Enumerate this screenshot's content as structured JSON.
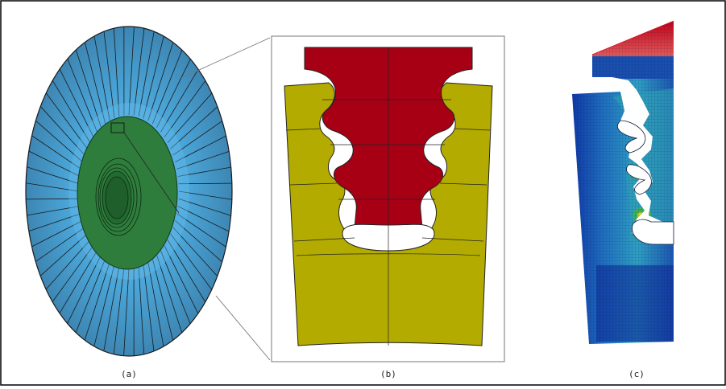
{
  "figure": {
    "captions": {
      "a": "(a)",
      "b": "(b)",
      "c": "(c)"
    },
    "panels": [
      {
        "id": "a",
        "content": "turbine-disk-with-blades",
        "colors": {
          "blades": "#4a97c4",
          "blades_inner": "#5fb7e8",
          "disk": "#2f7d3c",
          "hub": "#1f5f2b",
          "outline": "#1a1a1a"
        }
      },
      {
        "id": "b",
        "content": "fir-tree-root-attachment",
        "colors": {
          "blade_root": "#a70015",
          "disk_slot": "#b3ab00",
          "lines": "#222222",
          "frame": "#777777"
        }
      },
      {
        "id": "c",
        "content": "stress-contour-mesh",
        "colors": {
          "low": "#000c8c",
          "mid_low": "#1b5fc0",
          "mid": "#33a8cc",
          "mid_high": "#34b07a",
          "high": "#e0d400",
          "peak": "#d40018"
        }
      }
    ]
  }
}
